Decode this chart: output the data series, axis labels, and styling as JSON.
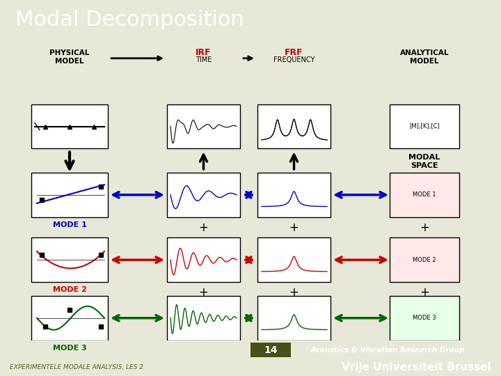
{
  "title": "Modal Decomposition",
  "title_bg_color": "#5a5f4a",
  "title_text_color": "#ffffff",
  "title_fontsize": 22,
  "content_bg_color": "#e8e8d8",
  "bottom_bar_color": "#8a8f3a",
  "bottom_bar2_color": "#6a6f2a",
  "bottom_text_left": "EXPERIMENTELE MODALE ANALYSIS, LES 2",
  "bottom_text_right": "Vrije Universiteit Brussel",
  "bottom_page_num": "14",
  "bottom_page_label": "Acoustics & Vibration Research Group",
  "header_physical": "PHYSICAL\nMODEL",
  "header_irf": "IRF",
  "header_irf_sub": "TIME",
  "header_frf": "FRF",
  "header_frf_sub": "FREQUENCY",
  "header_analytical": "ANALYTICAL\nMODEL",
  "mode1_label": "MODE 1",
  "mode2_label": "MODE 2",
  "mode3_label": "MODE 3",
  "mode1_color": "#0000cc",
  "mode2_color": "#cc0000",
  "mode3_color": "#006600",
  "arrow_color_up": "#000000",
  "irf_color": "#cc0000",
  "frf_color": "#cc0000"
}
